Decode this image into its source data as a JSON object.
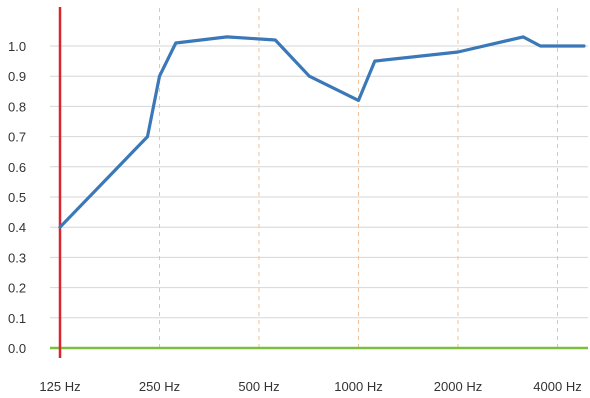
{
  "chart_data": {
    "type": "line",
    "title": "",
    "xlabel": "",
    "ylabel": "",
    "x_scale": "log2",
    "x_ticks": [
      {
        "label": "125 Hz",
        "value": 125
      },
      {
        "label": "250 Hz",
        "value": 250
      },
      {
        "label": "500 Hz",
        "value": 500
      },
      {
        "label": "1000 Hz",
        "value": 1000
      },
      {
        "label": "2000 Hz",
        "value": 2000
      },
      {
        "label": "4000 Hz",
        "value": 4000
      }
    ],
    "xlim": [
      125,
      5000
    ],
    "ylim": [
      0,
      1.0
    ],
    "y_ticks": [
      {
        "label": "0.0",
        "value": 0.0
      },
      {
        "label": "0.1",
        "value": 0.1
      },
      {
        "label": "0.2",
        "value": 0.2
      },
      {
        "label": "0.3",
        "value": 0.3
      },
      {
        "label": "0.4",
        "value": 0.4
      },
      {
        "label": "0.5",
        "value": 0.5
      },
      {
        "label": "0.6",
        "value": 0.6
      },
      {
        "label": "0.7",
        "value": 0.7
      },
      {
        "label": "0.8",
        "value": 0.8
      },
      {
        "label": "0.9",
        "value": 0.9
      },
      {
        "label": "1.0",
        "value": 1.0
      }
    ],
    "series": [
      {
        "color": "#3a78b8",
        "points": [
          {
            "x": 125,
            "y": 0.4
          },
          {
            "x": 230,
            "y": 0.7
          },
          {
            "x": 250,
            "y": 0.9
          },
          {
            "x": 280,
            "y": 1.01
          },
          {
            "x": 400,
            "y": 1.03
          },
          {
            "x": 560,
            "y": 1.02
          },
          {
            "x": 710,
            "y": 0.9
          },
          {
            "x": 1000,
            "y": 0.82
          },
          {
            "x": 1120,
            "y": 0.95
          },
          {
            "x": 2000,
            "y": 0.98
          },
          {
            "x": 3150,
            "y": 1.03
          },
          {
            "x": 3550,
            "y": 1.0
          },
          {
            "x": 5000,
            "y": 1.0
          }
        ]
      }
    ],
    "grid": {
      "horizontal": true,
      "horizontal_color": "#d6d6d6",
      "vertical": true,
      "vertical_color": "#f2c29a",
      "vertical_style": "dashed"
    },
    "axis_colors": {
      "y_axis": "#d9262c",
      "x_axis": "#7cbf3f"
    },
    "legend": "none"
  }
}
